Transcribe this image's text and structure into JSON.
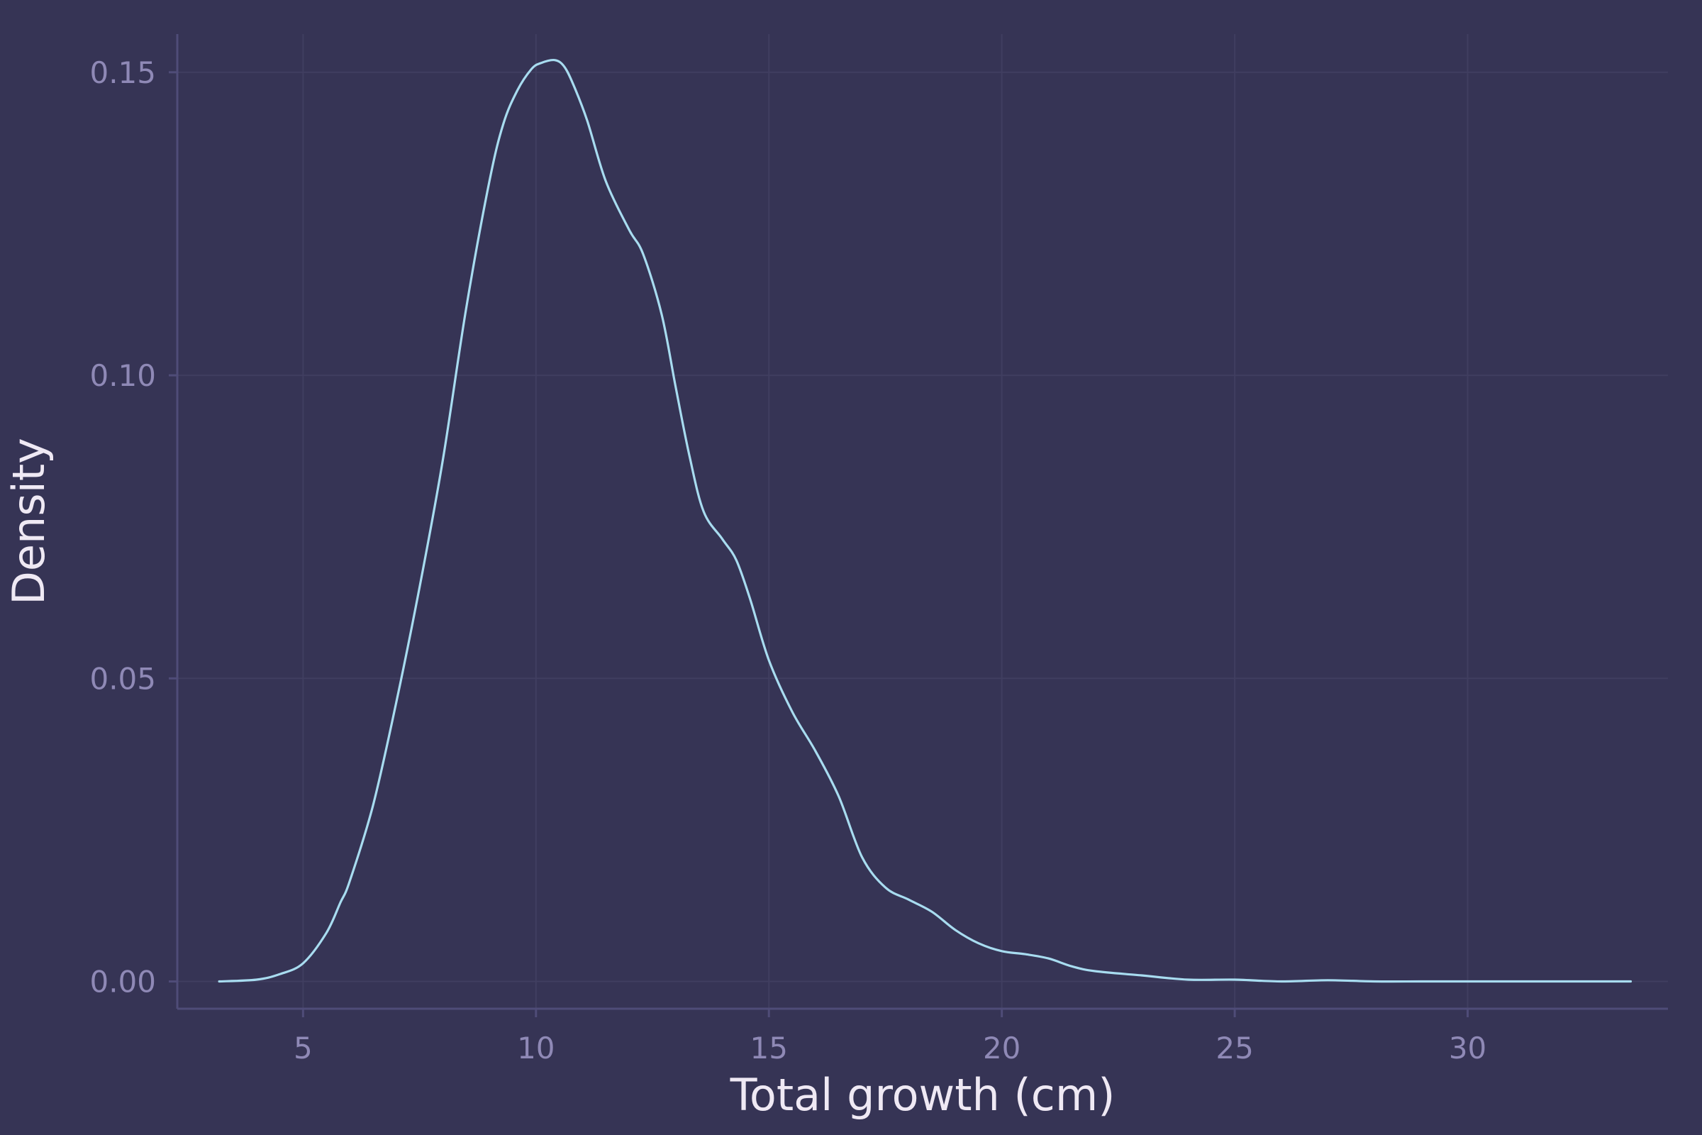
{
  "chart_data": {
    "type": "line",
    "title": "",
    "xlabel": "Total growth (cm)",
    "ylabel": "Density",
    "xlim": [
      2.3,
      34.3
    ],
    "ylim": [
      -0.0045,
      0.1563
    ],
    "x_ticks": [
      5,
      10,
      15,
      20,
      25,
      30
    ],
    "x_tick_labels": [
      "5",
      "10",
      "15",
      "20",
      "25",
      "30"
    ],
    "y_ticks": [
      0.0,
      0.05,
      0.1,
      0.15
    ],
    "y_tick_labels": [
      "0.00",
      "0.05",
      "0.10",
      "0.15"
    ],
    "grid": true,
    "legend": "none",
    "colors": {
      "background": "#363455",
      "line": "#a8dcf0",
      "grid": "#403e60",
      "axis": "#4f4c78",
      "tick_label": "#8f89b6",
      "axis_title": "#efe9f4"
    },
    "series": [
      {
        "x": [
          3.2,
          4.0,
          4.5,
          5.0,
          5.5,
          5.8,
          6.0,
          6.5,
          7.0,
          7.5,
          8.0,
          8.5,
          9.0,
          9.3,
          9.6,
          9.9,
          10.1,
          10.4,
          10.6,
          10.8,
          11.1,
          11.5,
          12.0,
          12.3,
          12.7,
          13.0,
          13.3,
          13.6,
          14.0,
          14.3,
          14.6,
          15.0,
          15.5,
          16.0,
          16.5,
          17.0,
          17.5,
          18.0,
          18.5,
          19.0,
          19.5,
          20.0,
          20.5,
          21.0,
          21.5,
          22.0,
          23.0,
          24.0,
          25.0,
          26.0,
          27.0,
          28.0,
          29.0,
          30.0,
          31.0,
          32.0,
          33.0,
          33.5
        ],
        "y": [
          0.0,
          0.0003,
          0.0012,
          0.003,
          0.008,
          0.013,
          0.0165,
          0.029,
          0.046,
          0.065,
          0.086,
          0.111,
          0.132,
          0.1415,
          0.147,
          0.1505,
          0.1515,
          0.152,
          0.151,
          0.148,
          0.142,
          0.132,
          0.124,
          0.12,
          0.11,
          0.098,
          0.0865,
          0.0775,
          0.073,
          0.0695,
          0.063,
          0.053,
          0.0445,
          0.038,
          0.0305,
          0.0205,
          0.0155,
          0.0135,
          0.0115,
          0.0085,
          0.0063,
          0.005,
          0.0045,
          0.0038,
          0.0025,
          0.0017,
          0.001,
          0.0003,
          0.0003,
          0.0,
          0.0002,
          0.0,
          0.0,
          0.0,
          0.0,
          0.0,
          0.0,
          0.0
        ]
      }
    ]
  }
}
